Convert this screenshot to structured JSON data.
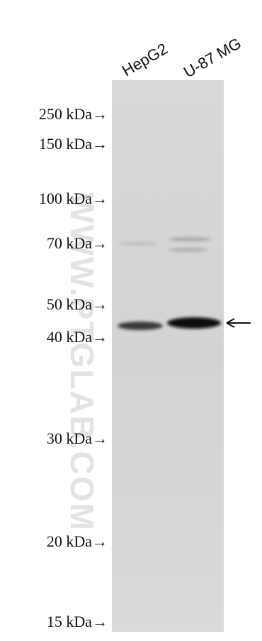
{
  "lanes": [
    "HepG2",
    "U-87 MG"
  ],
  "markers": [
    "250 kDa→",
    "150 kDa→",
    "100 kDa→",
    "70 kDa→",
    "50 kDa→",
    "40 kDa→",
    "30 kDa→",
    "20 kDa→",
    "15 kDa→"
  ],
  "watermark": "WWW.PTGLAB.COM"
}
